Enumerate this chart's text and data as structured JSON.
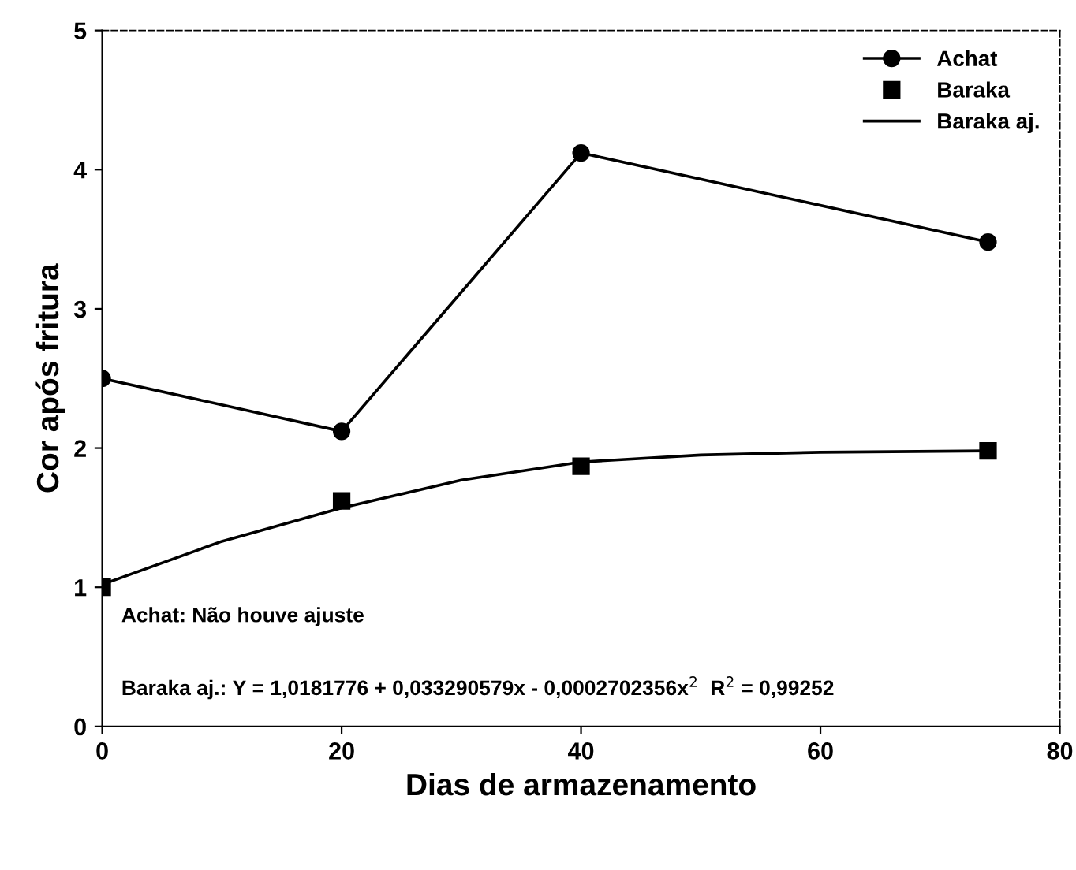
{
  "chart_data": {
    "type": "line",
    "xlabel": "Dias de armazenamento",
    "ylabel": "Cor após fritura",
    "xlim": [
      0,
      80
    ],
    "xticks": [
      0,
      20,
      40,
      60,
      80
    ],
    "ylim": [
      0,
      5
    ],
    "yticks": [
      0,
      1,
      2,
      3,
      4,
      5
    ],
    "grid": false,
    "legend": "top right",
    "series": [
      {
        "name": "Achat",
        "marker": "circle",
        "color": "#000000",
        "x": [
          0,
          20,
          40,
          74
        ],
        "values": [
          2.5,
          2.12,
          4.12,
          3.48
        ]
      },
      {
        "name": "Baraka",
        "type": "scatter",
        "marker": "square",
        "color": "#000000",
        "x": [
          0,
          20,
          40,
          74
        ],
        "values": [
          1.0,
          1.62,
          1.87,
          1.98
        ]
      },
      {
        "name": "Baraka aj.",
        "type": "line",
        "marker": "none",
        "color": "#000000",
        "x": [
          0,
          10,
          20,
          30,
          40,
          50,
          60,
          74
        ],
        "values": [
          1.02,
          1.33,
          1.57,
          1.77,
          1.9,
          1.95,
          1.97,
          1.98
        ]
      }
    ],
    "annotations": [
      "Achat: Não houve ajuste",
      "Baraka aj.: Y = 1,0181776 + 0,033290579x - 0,0002702356x$^{2}$  R$^{2}$ = 0,99252"
    ]
  }
}
